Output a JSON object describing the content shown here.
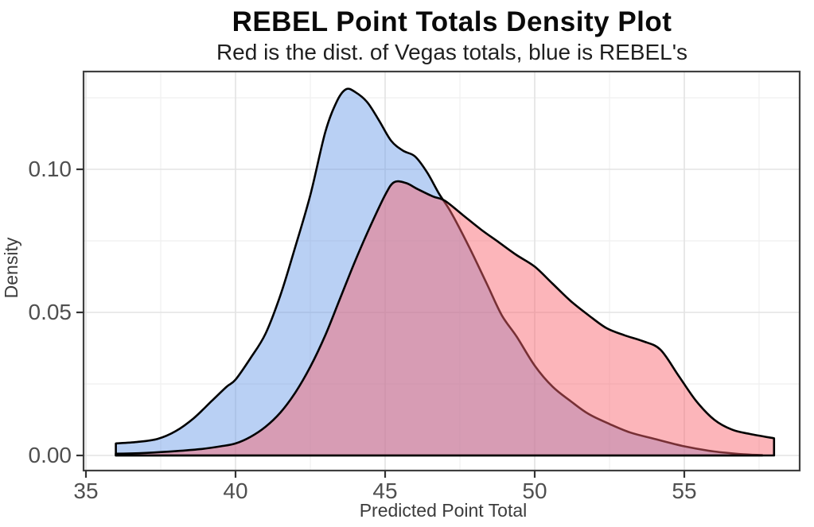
{
  "header": {
    "title": "REBEL Point Totals Density Plot",
    "subtitle": "Red is the dist. of Vegas totals, blue is REBEL's"
  },
  "colors": {
    "background": "#ffffff",
    "panel_border": "#3f3f3f",
    "grid_major": "#e3e3e3",
    "grid_minor": "#efefef",
    "curve_outline": "#000000",
    "rebel_blue_fill": "rgba(100,150,230,0.45)",
    "vegas_red_fill": "rgba(249,100,110,0.48)",
    "blue_over_white_observed": "#b8d0f2",
    "red_over_white_observed": "#fcb1b5",
    "overlap_observed": "#cd94b4",
    "text_dark": "#0a0a0a",
    "text_axis": "#4f4f4f"
  },
  "chart_data": {
    "type": "area",
    "subtype": "kernel-density",
    "title": "REBEL Point Totals Density Plot",
    "subtitle": "Red is the dist. of Vegas totals, blue is REBEL's",
    "xlabel": "Predicted Point Total",
    "ylabel": "Density",
    "xlim": [
      34.9,
      58.9
    ],
    "ylim": [
      -0.005,
      0.134
    ],
    "x_ticks": [
      35,
      40,
      45,
      50,
      55
    ],
    "y_ticks": [
      0.0,
      0.05,
      0.1
    ],
    "x_tick_labels": [
      "35",
      "40",
      "45",
      "50",
      "55"
    ],
    "y_tick_labels": [
      "0.00",
      "0.05",
      "0.10"
    ],
    "grid": {
      "major": true,
      "minor": true,
      "x_minor_step": 2.5,
      "y_minor_step": 0.025
    },
    "legend": "none",
    "series": [
      {
        "name": "REBEL totals (blue)",
        "fill": "rgba(100,150,230,0.45)",
        "stroke": "#000000",
        "peak": {
          "x": 43.7,
          "density": 0.128
        },
        "points": [
          [
            36,
            0.0042
          ],
          [
            36.7,
            0.0047
          ],
          [
            37.4,
            0.0058
          ],
          [
            38,
            0.0085
          ],
          [
            38.6,
            0.013
          ],
          [
            39.2,
            0.019
          ],
          [
            39.7,
            0.024
          ],
          [
            40,
            0.0265
          ],
          [
            40.5,
            0.034
          ],
          [
            41,
            0.0425
          ],
          [
            41.5,
            0.056
          ],
          [
            42,
            0.073
          ],
          [
            42.5,
            0.091
          ],
          [
            43,
            0.113
          ],
          [
            43.4,
            0.124
          ],
          [
            43.7,
            0.128
          ],
          [
            44,
            0.127
          ],
          [
            44.4,
            0.1235
          ],
          [
            44.8,
            0.117
          ],
          [
            45.2,
            0.11
          ],
          [
            45.6,
            0.1065
          ],
          [
            46,
            0.1045
          ],
          [
            46.4,
            0.099
          ],
          [
            46.8,
            0.0915
          ],
          [
            47.2,
            0.085
          ],
          [
            47.8,
            0.073
          ],
          [
            48.4,
            0.06
          ],
          [
            48.9,
            0.049
          ],
          [
            49.4,
            0.0415
          ],
          [
            50,
            0.0314
          ],
          [
            50.6,
            0.024
          ],
          [
            51.2,
            0.019
          ],
          [
            51.8,
            0.0145
          ],
          [
            52.5,
            0.011
          ],
          [
            53.2,
            0.008
          ],
          [
            54,
            0.0058
          ],
          [
            55,
            0.0032
          ],
          [
            56,
            0.0014
          ],
          [
            57,
            0.0004
          ],
          [
            57.6,
            0.0001
          ]
        ]
      },
      {
        "name": "Vegas totals (red)",
        "fill": "rgba(249,100,110,0.48)",
        "stroke": "#000000",
        "peak": {
          "x": 45.3,
          "density": 0.096
        },
        "points": [
          [
            36,
            0.0006
          ],
          [
            37,
            0.0009
          ],
          [
            38,
            0.0015
          ],
          [
            38.8,
            0.0022
          ],
          [
            39.5,
            0.0032
          ],
          [
            40,
            0.0042
          ],
          [
            40.5,
            0.0065
          ],
          [
            41,
            0.01
          ],
          [
            41.5,
            0.015
          ],
          [
            42,
            0.022
          ],
          [
            42.5,
            0.031
          ],
          [
            43,
            0.042
          ],
          [
            43.5,
            0.055
          ],
          [
            44,
            0.068
          ],
          [
            44.5,
            0.08
          ],
          [
            45,
            0.091
          ],
          [
            45.3,
            0.0955
          ],
          [
            45.7,
            0.0952
          ],
          [
            46.1,
            0.093
          ],
          [
            46.6,
            0.0905
          ],
          [
            47,
            0.089
          ],
          [
            47.6,
            0.084
          ],
          [
            48.2,
            0.079
          ],
          [
            48.8,
            0.0745
          ],
          [
            49.4,
            0.07
          ],
          [
            50,
            0.066
          ],
          [
            50.6,
            0.06
          ],
          [
            51.2,
            0.054
          ],
          [
            51.8,
            0.049
          ],
          [
            52.4,
            0.0445
          ],
          [
            53,
            0.042
          ],
          [
            53.6,
            0.04
          ],
          [
            54.2,
            0.037
          ],
          [
            54.8,
            0.028
          ],
          [
            55.4,
            0.019
          ],
          [
            56,
            0.0125
          ],
          [
            56.6,
            0.009
          ],
          [
            57.2,
            0.0075
          ],
          [
            58,
            0.006
          ]
        ]
      }
    ]
  }
}
